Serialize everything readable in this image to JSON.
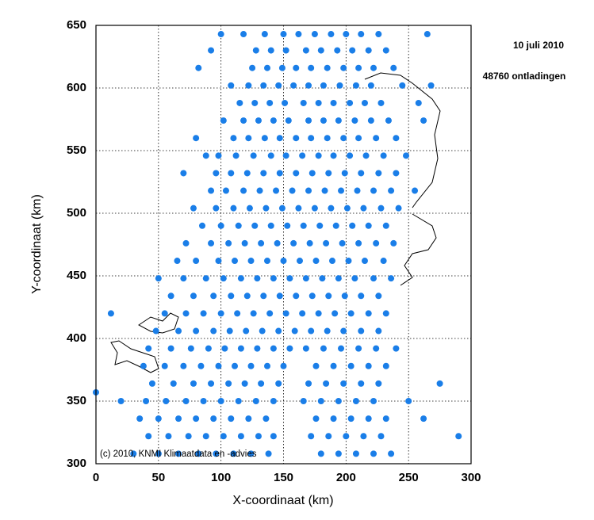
{
  "chart_data": {
    "type": "scatter",
    "title": "10 juli 2010",
    "subtitle": "48760 ontladingen",
    "annotation": "(c) 2010, KNMI Klimaatdata en -advies",
    "x_label": "X-coordinaat (km)",
    "y_label": "Y-coordinaat (km)",
    "color": "#1a7ee8",
    "grid": true,
    "xlim": [
      0,
      300
    ],
    "ylim": [
      300,
      650
    ],
    "xticks": [
      0,
      50,
      100,
      150,
      200,
      250,
      300
    ],
    "yticks": [
      300,
      350,
      400,
      450,
      500,
      550,
      600,
      650
    ],
    "x": [
      100,
      118,
      135,
      150,
      162,
      175,
      188,
      200,
      212,
      226,
      265,
      92,
      128,
      140,
      152,
      168,
      180,
      193,
      205,
      218,
      232,
      82,
      125,
      137,
      149,
      160,
      172,
      185,
      198,
      210,
      222,
      238,
      108,
      122,
      134,
      146,
      158,
      170,
      182,
      195,
      208,
      220,
      245,
      268,
      115,
      127,
      139,
      151,
      166,
      178,
      190,
      203,
      215,
      228,
      258,
      102,
      118,
      130,
      142,
      154,
      170,
      182,
      194,
      207,
      220,
      234,
      262,
      80,
      110,
      122,
      135,
      147,
      160,
      172,
      185,
      198,
      210,
      224,
      240,
      88,
      98,
      112,
      126,
      140,
      152,
      165,
      178,
      190,
      203,
      216,
      230,
      248,
      70,
      96,
      108,
      121,
      134,
      147,
      160,
      173,
      186,
      199,
      212,
      226,
      240,
      92,
      104,
      118,
      131,
      144,
      157,
      170,
      183,
      196,
      209,
      222,
      236,
      255,
      78,
      96,
      110,
      123,
      136,
      149,
      162,
      175,
      188,
      201,
      214,
      228,
      242,
      85,
      100,
      114,
      127,
      140,
      153,
      166,
      179,
      192,
      205,
      218,
      232,
      72,
      92,
      106,
      119,
      132,
      145,
      158,
      171,
      184,
      197,
      210,
      224,
      238,
      65,
      80,
      98,
      111,
      124,
      137,
      150,
      163,
      176,
      189,
      202,
      215,
      230,
      50,
      70,
      88,
      102,
      116,
      129,
      142,
      155,
      168,
      181,
      194,
      207,
      222,
      236,
      60,
      78,
      94,
      108,
      121,
      134,
      147,
      160,
      173,
      186,
      199,
      212,
      226,
      12,
      55,
      72,
      86,
      100,
      113,
      126,
      139,
      152,
      165,
      178,
      191,
      204,
      218,
      232,
      48,
      66,
      80,
      94,
      107,
      120,
      133,
      146,
      159,
      172,
      185,
      198,
      212,
      226,
      42,
      60,
      76,
      90,
      103,
      116,
      129,
      142,
      155,
      168,
      182,
      196,
      210,
      224,
      240,
      38,
      55,
      70,
      84,
      98,
      111,
      124,
      137,
      150,
      176,
      190,
      204,
      218,
      232,
      45,
      62,
      78,
      92,
      106,
      119,
      132,
      146,
      170,
      184,
      198,
      212,
      226,
      275,
      20,
      40,
      56,
      72,
      86,
      100,
      114,
      128,
      142,
      166,
      180,
      194,
      208,
      222,
      250,
      35,
      50,
      66,
      80,
      94,
      108,
      122,
      136,
      176,
      190,
      204,
      218,
      232,
      262,
      42,
      58,
      74,
      88,
      102,
      116,
      130,
      142,
      172,
      186,
      200,
      214,
      228,
      290,
      30,
      50,
      66,
      82,
      96,
      110,
      124,
      138,
      180,
      194,
      208,
      222,
      236,
      0
    ],
    "values": [
      643,
      643,
      643,
      643,
      643,
      643,
      643,
      643,
      643,
      643,
      643,
      630,
      630,
      630,
      630,
      630,
      630,
      630,
      630,
      630,
      630,
      616,
      616,
      616,
      616,
      616,
      616,
      616,
      616,
      616,
      616,
      616,
      602,
      602,
      602,
      602,
      602,
      602,
      602,
      602,
      602,
      602,
      602,
      602,
      588,
      588,
      588,
      588,
      588,
      588,
      588,
      588,
      588,
      588,
      588,
      574,
      574,
      574,
      574,
      574,
      574,
      574,
      574,
      574,
      574,
      574,
      574,
      560,
      560,
      560,
      560,
      560,
      560,
      560,
      560,
      560,
      560,
      560,
      560,
      546,
      546,
      546,
      546,
      546,
      546,
      546,
      546,
      546,
      546,
      546,
      546,
      546,
      532,
      532,
      532,
      532,
      532,
      532,
      532,
      532,
      532,
      532,
      532,
      532,
      532,
      518,
      518,
      518,
      518,
      518,
      518,
      518,
      518,
      518,
      518,
      518,
      518,
      518,
      504,
      504,
      504,
      504,
      504,
      504,
      504,
      504,
      504,
      504,
      504,
      504,
      504,
      490,
      490,
      490,
      490,
      490,
      490,
      490,
      490,
      490,
      490,
      490,
      490,
      476,
      476,
      476,
      476,
      476,
      476,
      476,
      476,
      476,
      476,
      476,
      476,
      476,
      462,
      462,
      462,
      462,
      462,
      462,
      462,
      462,
      462,
      462,
      462,
      462,
      462,
      448,
      448,
      448,
      448,
      448,
      448,
      448,
      448,
      448,
      448,
      448,
      448,
      448,
      448,
      434,
      434,
      434,
      434,
      434,
      434,
      434,
      434,
      434,
      434,
      434,
      434,
      434,
      420,
      420,
      420,
      420,
      420,
      420,
      420,
      420,
      420,
      420,
      420,
      420,
      420,
      420,
      420,
      406,
      406,
      406,
      406,
      406,
      406,
      406,
      406,
      406,
      406,
      406,
      406,
      406,
      406,
      392,
      392,
      392,
      392,
      392,
      392,
      392,
      392,
      392,
      392,
      392,
      392,
      392,
      392,
      392,
      378,
      378,
      378,
      378,
      378,
      378,
      378,
      378,
      378,
      378,
      378,
      378,
      378,
      378,
      364,
      364,
      364,
      364,
      364,
      364,
      364,
      364,
      364,
      364,
      364,
      364,
      364,
      364,
      350,
      350,
      350,
      350,
      350,
      350,
      350,
      350,
      350,
      350,
      350,
      350,
      350,
      350,
      350,
      336,
      336,
      336,
      336,
      336,
      336,
      336,
      336,
      336,
      336,
      336,
      336,
      336,
      336,
      322,
      322,
      322,
      322,
      322,
      322,
      322,
      322,
      322,
      322,
      322,
      322,
      322,
      322,
      308,
      308,
      308,
      308,
      308,
      308,
      308,
      308,
      308,
      308,
      308,
      308,
      308,
      357
    ]
  }
}
